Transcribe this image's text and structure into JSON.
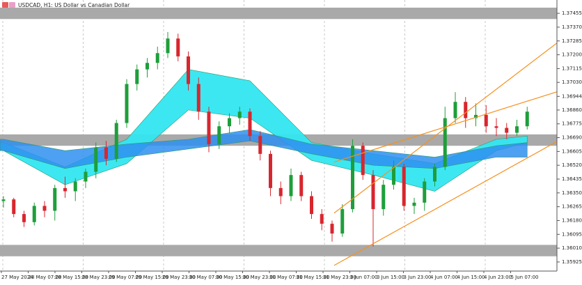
{
  "chart_data": {
    "type": "candlestick",
    "title": "USDCAD, H1:  US Dollar vs Canadian Dollar",
    "time_labels": [
      "27 May 2024",
      "28 May 07:00",
      "28 May 15:00",
      "28 May 23:00",
      "29 May 07:00",
      "29 May 15:00",
      "29 May 23:00",
      "30 May 07:00",
      "30 May 15:00",
      "30 May 23:00",
      "31 May 07:00",
      "31 May 15:00",
      "31 May 23:00",
      "3 Jun 07:00",
      "3 Jun 15:00",
      "3 Jun 23:00",
      "4 Jun 07:00",
      "4 Jun 15:00",
      "4 Jun 23:00",
      "5 Jun 07:00"
    ],
    "ylim": [
      1.35869,
      1.37537
    ],
    "yticks": [
      1.37455,
      {
        "value": 1.3737,
        "label": "1.37370"
      },
      1.37285,
      {
        "value": 1.372,
        "label": "1.37200"
      },
      1.37115,
      {
        "value": 1.3703,
        "label": "1.37030"
      },
      1.36944,
      {
        "value": 1.3686,
        "label": "1.36860"
      },
      1.36775,
      {
        "value": 1.3669,
        "label": "1.36690"
      },
      1.36605,
      {
        "value": 1.3652,
        "label": "1.36520"
      },
      1.36435,
      {
        "value": 1.3635,
        "label": "1.36350"
      },
      1.36265,
      {
        "value": 1.3618,
        "label": "1.36180"
      },
      1.36095,
      {
        "value": 1.3601,
        "label": "1.36010"
      },
      1.35925
    ],
    "up_color": "#1e9e3a",
    "down_color": "#d8262e",
    "candles": [
      [
        1.363,
        1.3633,
        1.3626,
        1.3631
      ],
      [
        1.3631,
        1.3632,
        1.362,
        1.3622
      ],
      [
        1.3622,
        1.3624,
        1.3614,
        1.3617
      ],
      [
        1.3617,
        1.3629,
        1.3615,
        1.3627
      ],
      [
        1.3627,
        1.363,
        1.362,
        1.3624
      ],
      [
        1.3624,
        1.364,
        1.3618,
        1.3638
      ],
      [
        1.3638,
        1.3645,
        1.3632,
        1.3636
      ],
      [
        1.3636,
        1.3644,
        1.363,
        1.3642
      ],
      [
        1.3642,
        1.365,
        1.3638,
        1.3648
      ],
      [
        1.3648,
        1.3666,
        1.3644,
        1.3663
      ],
      [
        1.3663,
        1.3667,
        1.3652,
        1.3656
      ],
      [
        1.3656,
        1.368,
        1.3654,
        1.3678
      ],
      [
        1.3678,
        1.3705,
        1.3675,
        1.3702
      ],
      [
        1.3702,
        1.3714,
        1.3698,
        1.3711
      ],
      [
        1.3711,
        1.3718,
        1.3706,
        1.3715
      ],
      [
        1.3715,
        1.3725,
        1.3711,
        1.3721
      ],
      [
        1.3721,
        1.3734,
        1.3718,
        1.373
      ],
      [
        1.373,
        1.3733,
        1.3716,
        1.3719
      ],
      [
        1.3719,
        1.3722,
        1.3698,
        1.3702
      ],
      [
        1.3702,
        1.3706,
        1.368,
        1.3685
      ],
      [
        1.3685,
        1.3688,
        1.366,
        1.3665
      ],
      [
        1.3665,
        1.3679,
        1.3662,
        1.3676
      ],
      [
        1.3676,
        1.3684,
        1.3672,
        1.3681
      ],
      [
        1.3681,
        1.3688,
        1.3677,
        1.3685
      ],
      [
        1.3685,
        1.3687,
        1.3667,
        1.367
      ],
      [
        1.367,
        1.3673,
        1.3655,
        1.3659
      ],
      [
        1.3659,
        1.3661,
        1.3633,
        1.3638
      ],
      [
        1.3638,
        1.3642,
        1.3628,
        1.3633
      ],
      [
        1.3633,
        1.365,
        1.363,
        1.3646
      ],
      [
        1.3646,
        1.3648,
        1.363,
        1.3633
      ],
      [
        1.3633,
        1.3636,
        1.3619,
        1.3622
      ],
      [
        1.3622,
        1.3625,
        1.3612,
        1.3616
      ],
      [
        1.3616,
        1.3618,
        1.3605,
        1.361
      ],
      [
        1.361,
        1.3628,
        1.3608,
        1.3625
      ],
      [
        1.3625,
        1.3668,
        1.3623,
        1.3664
      ],
      [
        1.3664,
        1.3666,
        1.3643,
        1.3646
      ],
      [
        1.3646,
        1.3649,
        1.3602,
        1.3625
      ],
      [
        1.3625,
        1.3643,
        1.3621,
        1.364
      ],
      [
        1.364,
        1.3655,
        1.3637,
        1.3651
      ],
      [
        1.3651,
        1.3653,
        1.3624,
        1.3627
      ],
      [
        1.3627,
        1.3632,
        1.3622,
        1.3629
      ],
      [
        1.3629,
        1.3644,
        1.3624,
        1.3642
      ],
      [
        1.3642,
        1.3653,
        1.3639,
        1.3651
      ],
      [
        1.3651,
        1.3688,
        1.3649,
        1.3681
      ],
      [
        1.3681,
        1.3697,
        1.3678,
        1.3691
      ],
      [
        1.3691,
        1.3694,
        1.3675,
        1.3681
      ],
      [
        1.3681,
        1.369,
        1.3676,
        1.3683
      ],
      [
        1.3683,
        1.3689,
        1.3672,
        1.3676
      ],
      [
        1.3676,
        1.3681,
        1.367,
        1.3675
      ],
      [
        1.3675,
        1.3678,
        1.3668,
        1.3672
      ],
      [
        1.3672,
        1.368,
        1.367,
        1.3676
      ],
      [
        1.3676,
        1.3688,
        1.3674,
        1.3685
      ]
    ],
    "band_index": [
      0,
      6,
      12,
      18,
      24,
      30,
      36,
      42,
      48,
      51
    ],
    "bands": [
      {
        "color": "#33e6f0",
        "upper": [
          1.3666,
          1.3651,
          1.3668,
          1.3711,
          1.3704,
          1.3666,
          1.3659,
          1.3653,
          1.3668,
          1.367
        ],
        "lower": [
          1.3661,
          1.364,
          1.3653,
          1.3686,
          1.3681,
          1.3655,
          1.3646,
          1.3636,
          1.3661,
          1.3666
        ]
      },
      {
        "color": "#2f8ff0",
        "upper": [
          1.3668,
          1.3661,
          1.3665,
          1.3668,
          1.3674,
          1.3665,
          1.3661,
          1.3657,
          1.3664,
          1.3666
        ],
        "lower": [
          1.3661,
          1.365,
          1.3657,
          1.3662,
          1.3667,
          1.3659,
          1.3652,
          1.365,
          1.3657,
          1.3657
        ]
      }
    ],
    "zones": [
      [
        1.3742,
        1.3749
      ],
      [
        1.3664,
        1.3671
      ],
      [
        1.3596,
        1.3603
      ]
    ],
    "zone_color": "#a9a9a9",
    "trendlines": [
      {
        "color": "#f5901e",
        "from": [
          32.2,
          1.36226
        ],
        "to": [
          54.2,
          1.37287
        ]
      },
      {
        "color": "#f5901e",
        "from": [
          32.2,
          1.3654
        ],
        "to": [
          54.2,
          1.36978
        ]
      },
      {
        "color": "#f5901e",
        "from": [
          32.2,
          1.35904
        ],
        "to": [
          54.2,
          1.36677
        ]
      }
    ]
  }
}
